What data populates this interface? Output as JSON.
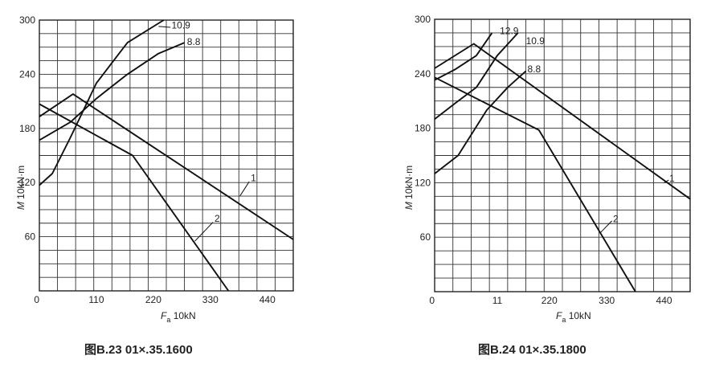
{
  "chart_data": [
    {
      "type": "line",
      "caption_fig": "图B.23",
      "caption_code": "01×.35.1600",
      "xlabel_var": "F",
      "xlabel_sub": "a",
      "xlabel_unit": "10kN",
      "ylabel_var": "M",
      "ylabel_unit": "10kN·m",
      "xlim": [
        0,
        490
      ],
      "ylim": [
        0,
        300
      ],
      "xticks": [
        0,
        110,
        220,
        330,
        440
      ],
      "yticks": [
        60,
        120,
        180,
        240,
        300
      ],
      "grid": true,
      "series": [
        {
          "name": "10.9",
          "points": [
            [
              0,
              117
            ],
            [
              25,
              130
            ],
            [
              60,
              170
            ],
            [
              110,
              230
            ],
            [
              170,
              275
            ],
            [
              240,
              300
            ]
          ]
        },
        {
          "name": "8.8",
          "points": [
            [
              0,
              167
            ],
            [
              60,
              187
            ],
            [
              110,
              213
            ],
            [
              170,
              240
            ],
            [
              230,
              263
            ],
            [
              280,
              275
            ]
          ]
        },
        {
          "name": "1",
          "points": [
            [
              0,
              193
            ],
            [
              65,
              218
            ],
            [
              490,
              57
            ]
          ]
        },
        {
          "name": "2",
          "points": [
            [
              0,
              207
            ],
            [
              180,
              150
            ],
            [
              365,
              0
            ]
          ]
        }
      ],
      "label_positions": [
        {
          "text": "10.9",
          "x": 255,
          "y": 294
        },
        {
          "text": "8.8",
          "x": 285,
          "y": 276
        },
        {
          "text": "1",
          "x": 408,
          "y": 125
        },
        {
          "text": "2",
          "x": 338,
          "y": 80
        }
      ],
      "leaders": [
        {
          "from": [
            230,
            293
          ],
          "to": [
            253,
            292
          ]
        },
        {
          "from": [
            387,
            105
          ],
          "to": [
            405,
            121
          ]
        },
        {
          "from": [
            300,
            55
          ],
          "to": [
            335,
            76
          ]
        }
      ]
    },
    {
      "type": "line",
      "caption_fig": "图B.24",
      "caption_code": "01×.35.1800",
      "xlabel_var": "F",
      "xlabel_sub": "a",
      "xlabel_unit": "10kN",
      "ylabel_var": "M",
      "ylabel_unit": "10kN·m",
      "xlim": [
        0,
        490
      ],
      "ylim": [
        0,
        300
      ],
      "xticks": [
        0,
        220,
        330,
        440
      ],
      "xtick_extra": "11",
      "yticks": [
        60,
        120,
        180,
        240,
        300
      ],
      "grid": true,
      "series": [
        {
          "name": "12.9",
          "points": [
            [
              0,
              233
            ],
            [
              40,
              245
            ],
            [
              80,
              260
            ],
            [
              110,
              285
            ]
          ]
        },
        {
          "name": "10.9",
          "points": [
            [
              0,
              190
            ],
            [
              45,
              210
            ],
            [
              80,
              225
            ],
            [
              120,
              260
            ],
            [
              160,
              285
            ]
          ]
        },
        {
          "name": "8.8",
          "points": [
            [
              0,
              130
            ],
            [
              45,
              150
            ],
            [
              100,
              200
            ],
            [
              140,
              225
            ],
            [
              175,
              243
            ]
          ]
        },
        {
          "name": "1",
          "points": [
            [
              0,
              246
            ],
            [
              75,
              273
            ],
            [
              490,
              102
            ]
          ]
        },
        {
          "name": "2",
          "points": [
            [
              0,
              236
            ],
            [
              200,
              178
            ],
            [
              385,
              0
            ]
          ]
        }
      ],
      "label_positions": [
        {
          "text": "12.9",
          "x": 125,
          "y": 287
        },
        {
          "text": "10.9",
          "x": 175,
          "y": 276
        },
        {
          "text": "8.8",
          "x": 178,
          "y": 245
        },
        {
          "text": "1",
          "x": 450,
          "y": 125
        },
        {
          "text": "2",
          "x": 342,
          "y": 80
        }
      ],
      "leaders": [
        {
          "from": [
            440,
            120
          ],
          "to": [
            449,
            123
          ]
        },
        {
          "from": [
            318,
            65
          ],
          "to": [
            340,
            78
          ]
        }
      ]
    }
  ]
}
